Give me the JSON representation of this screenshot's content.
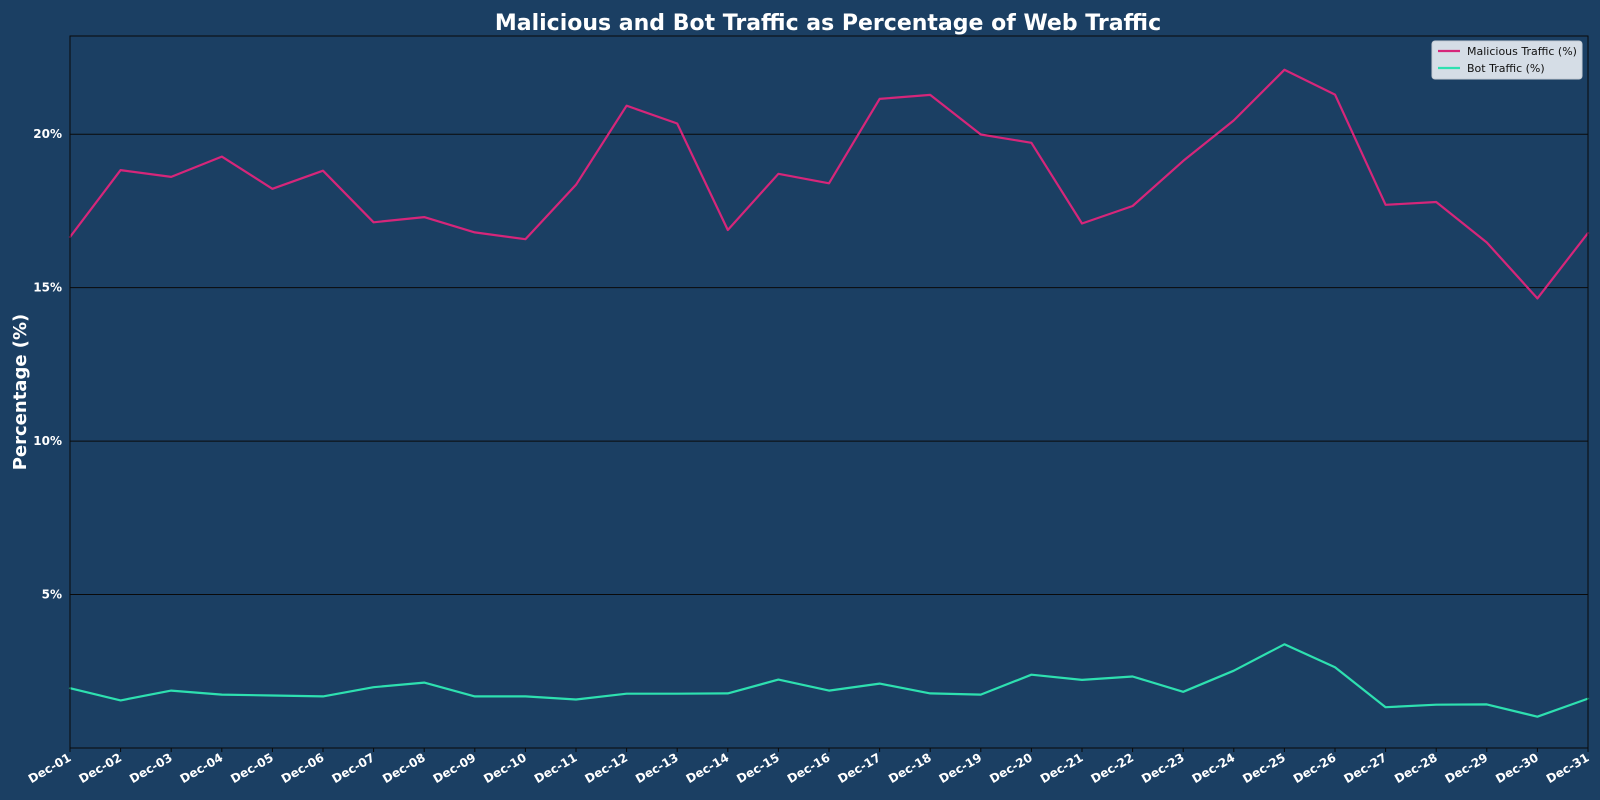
{
  "chart_data": {
    "type": "line",
    "title": "Malicious and Bot Traffic as Percentage of Web Traffic",
    "xlabel": "",
    "ylabel": "Percentage (%)",
    "ylim": [
      0,
      23.2
    ],
    "yticks": [
      5,
      10,
      15,
      20
    ],
    "ytick_labels": [
      "5%",
      "10%",
      "15%",
      "20%"
    ],
    "grid": "horizontal",
    "legend_position": "top-right",
    "x": [
      "Dec-01",
      "Dec-02",
      "Dec-03",
      "Dec-04",
      "Dec-05",
      "Dec-06",
      "Dec-07",
      "Dec-08",
      "Dec-09",
      "Dec-10",
      "Dec-11",
      "Dec-12",
      "Dec-13",
      "Dec-14",
      "Dec-15",
      "Dec-16",
      "Dec-17",
      "Dec-18",
      "Dec-19",
      "Dec-20",
      "Dec-21",
      "Dec-22",
      "Dec-23",
      "Dec-24",
      "Dec-25",
      "Dec-26",
      "Dec-27",
      "Dec-28",
      "Dec-29",
      "Dec-30",
      "Dec-31"
    ],
    "series": [
      {
        "name": "Malicious Traffic (%)",
        "color": "#d6267a",
        "values": [
          16.65,
          18.83,
          18.61,
          19.27,
          18.22,
          18.81,
          17.13,
          17.3,
          16.8,
          16.58,
          18.35,
          20.93,
          20.35,
          16.88,
          18.71,
          18.4,
          21.15,
          21.28,
          19.99,
          19.72,
          17.09,
          17.66,
          19.13,
          20.45,
          22.1,
          21.29,
          17.7,
          17.79,
          16.47,
          14.65,
          16.78
        ]
      },
      {
        "name": "Bot Traffic (%)",
        "color": "#2ee0b0",
        "values": [
          1.95,
          1.55,
          1.87,
          1.74,
          1.71,
          1.68,
          1.98,
          2.13,
          1.68,
          1.68,
          1.58,
          1.77,
          1.77,
          1.78,
          2.23,
          1.87,
          2.1,
          1.78,
          1.74,
          2.39,
          2.22,
          2.33,
          1.83,
          2.52,
          3.38,
          2.63,
          1.33,
          1.41,
          1.42,
          1.02,
          1.61
        ]
      }
    ]
  }
}
